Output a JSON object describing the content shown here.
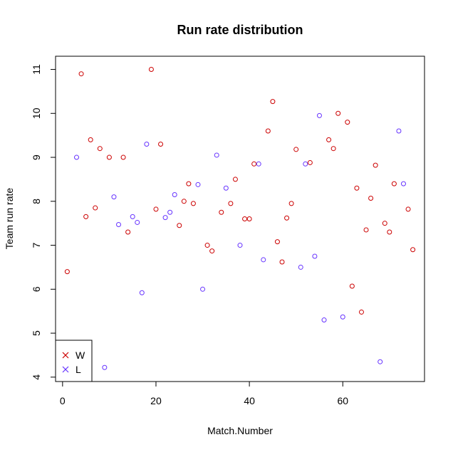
{
  "chart_data": {
    "type": "scatter",
    "title": "Run rate distribution",
    "xlabel": "Match.Number",
    "ylabel": "Team run rate",
    "xlim": [
      -1.5,
      77.5
    ],
    "ylim": [
      3.9,
      11.3
    ],
    "x_ticks": [
      0,
      20,
      40,
      60
    ],
    "y_ticks": [
      4,
      5,
      6,
      7,
      8,
      9,
      10,
      11
    ],
    "grid": false,
    "marker": "open-circle",
    "legend": {
      "position": "bottom-left",
      "marker": "cross",
      "entries": [
        {
          "label": "W",
          "color": "#cc0000"
        },
        {
          "label": "L",
          "color": "#6633ff"
        }
      ]
    },
    "series": [
      {
        "name": "W",
        "color": "#cc0000",
        "points": [
          [
            1,
            6.4
          ],
          [
            4,
            10.9
          ],
          [
            5,
            7.65
          ],
          [
            6,
            9.4
          ],
          [
            7,
            7.85
          ],
          [
            8,
            9.2
          ],
          [
            10,
            9.0
          ],
          [
            13,
            9.0
          ],
          [
            14,
            7.3
          ],
          [
            19,
            11.0
          ],
          [
            20,
            7.82
          ],
          [
            21,
            9.3
          ],
          [
            25,
            7.45
          ],
          [
            26,
            8.0
          ],
          [
            27,
            8.4
          ],
          [
            28,
            7.95
          ],
          [
            31,
            7.0
          ],
          [
            32,
            6.87
          ],
          [
            34,
            7.75
          ],
          [
            36,
            7.95
          ],
          [
            37,
            8.5
          ],
          [
            39,
            7.6
          ],
          [
            40,
            7.6
          ],
          [
            41,
            8.85
          ],
          [
            44,
            9.6
          ],
          [
            45,
            10.27
          ],
          [
            46,
            7.08
          ],
          [
            47,
            6.62
          ],
          [
            48,
            7.62
          ],
          [
            49,
            7.95
          ],
          [
            50,
            9.18
          ],
          [
            53,
            8.88
          ],
          [
            57,
            9.4
          ],
          [
            58,
            9.2
          ],
          [
            59,
            10.0
          ],
          [
            61,
            9.8
          ],
          [
            62,
            6.07
          ],
          [
            63,
            8.3
          ],
          [
            64,
            5.48
          ],
          [
            65,
            7.35
          ],
          [
            66,
            8.07
          ],
          [
            67,
            8.82
          ],
          [
            69,
            7.5
          ],
          [
            70,
            7.3
          ],
          [
            71,
            8.4
          ],
          [
            74,
            7.82
          ],
          [
            75,
            6.9
          ]
        ]
      },
      {
        "name": "L",
        "color": "#6633ff",
        "points": [
          [
            3,
            9.0
          ],
          [
            9,
            4.22
          ],
          [
            11,
            8.1
          ],
          [
            12,
            7.47
          ],
          [
            15,
            7.65
          ],
          [
            16,
            7.52
          ],
          [
            17,
            5.92
          ],
          [
            18,
            9.3
          ],
          [
            22,
            7.63
          ],
          [
            23,
            7.75
          ],
          [
            24,
            8.15
          ],
          [
            29,
            8.38
          ],
          [
            30,
            6.0
          ],
          [
            33,
            9.05
          ],
          [
            35,
            8.3
          ],
          [
            38,
            7.0
          ],
          [
            42,
            8.85
          ],
          [
            43,
            6.67
          ],
          [
            51,
            6.5
          ],
          [
            52,
            8.85
          ],
          [
            54,
            6.75
          ],
          [
            55,
            9.95
          ],
          [
            56,
            5.3
          ],
          [
            60,
            5.37
          ],
          [
            68,
            4.35
          ],
          [
            72,
            9.6
          ],
          [
            73,
            8.4
          ]
        ]
      }
    ]
  }
}
